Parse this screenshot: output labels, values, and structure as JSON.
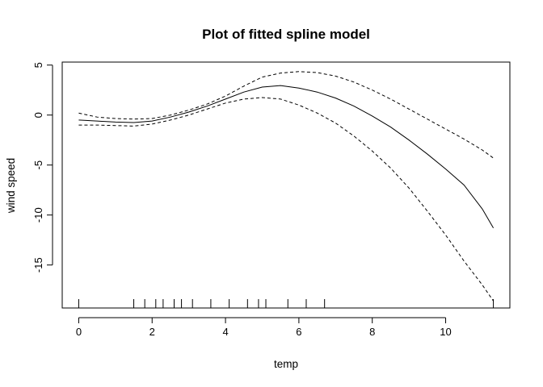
{
  "chart_data": {
    "type": "line",
    "title": "Plot of fitted spline model",
    "xlabel": "temp",
    "ylabel": "wind speed",
    "xlim": [
      -0.45,
      11.75
    ],
    "ylim": [
      -19.3,
      5.3
    ],
    "x_ticks": [
      0,
      2,
      4,
      6,
      8,
      10
    ],
    "x_tick_labels": [
      "0",
      "2",
      "4",
      "6",
      "8",
      "10"
    ],
    "y_ticks": [
      5,
      0,
      -5,
      -10,
      -15
    ],
    "y_tick_labels": [
      "5",
      "0",
      "-5",
      "-10",
      "-15"
    ],
    "grid": false,
    "legend": "none",
    "series": [
      {
        "style": "solid",
        "x": [
          0,
          0.5,
          1,
          1.5,
          2,
          2.5,
          3,
          3.5,
          4,
          4.5,
          5,
          5.5,
          6,
          6.5,
          7,
          7.5,
          8,
          8.5,
          9,
          9.5,
          10,
          10.5,
          11,
          11.3
        ],
        "values": [
          -0.5,
          -0.6,
          -0.7,
          -0.75,
          -0.6,
          -0.2,
          0.3,
          0.9,
          1.6,
          2.3,
          2.8,
          2.95,
          2.7,
          2.3,
          1.7,
          0.9,
          -0.1,
          -1.2,
          -2.5,
          -3.9,
          -5.4,
          -7.0,
          -9.4,
          -11.3
        ]
      },
      {
        "style": "dashed",
        "x": [
          0,
          0.5,
          1,
          1.5,
          2,
          2.5,
          3,
          3.5,
          4,
          4.5,
          5,
          5.5,
          6,
          6.5,
          7,
          7.5,
          8,
          8.5,
          9,
          9.5,
          10,
          10.5,
          11,
          11.3
        ],
        "values": [
          0.2,
          -0.2,
          -0.35,
          -0.4,
          -0.35,
          0.0,
          0.5,
          1.1,
          1.9,
          2.9,
          3.8,
          4.2,
          4.35,
          4.25,
          3.9,
          3.3,
          2.5,
          1.6,
          0.6,
          -0.4,
          -1.4,
          -2.4,
          -3.5,
          -4.3
        ]
      },
      {
        "style": "dashed",
        "x": [
          0,
          0.5,
          1,
          1.5,
          2,
          2.5,
          3,
          3.5,
          4,
          4.5,
          5,
          5.5,
          6,
          6.5,
          7,
          7.5,
          8,
          8.5,
          9,
          9.5,
          10,
          10.5,
          11,
          11.3
        ],
        "values": [
          -1.0,
          -1.0,
          -1.05,
          -1.1,
          -0.9,
          -0.5,
          0.0,
          0.6,
          1.2,
          1.6,
          1.75,
          1.6,
          1.0,
          0.2,
          -0.8,
          -2.1,
          -3.6,
          -5.3,
          -7.3,
          -9.6,
          -12.0,
          -14.6,
          -17.0,
          -18.6
        ]
      }
    ],
    "rug": [
      0,
      1.5,
      1.8,
      2.1,
      2.3,
      2.6,
      2.8,
      3.1,
      3.6,
      4.1,
      4.6,
      4.9,
      5.1,
      5.7,
      6.2,
      6.7,
      11.3
    ]
  }
}
